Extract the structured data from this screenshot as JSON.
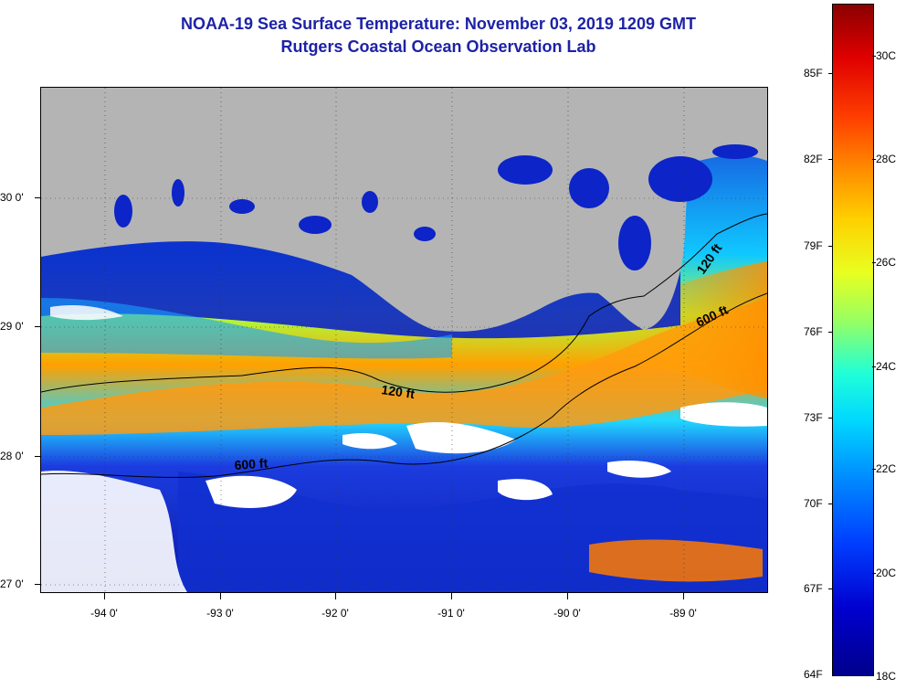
{
  "header": {
    "title": "NOAA-19 Sea Surface Temperature:  November 03, 2019 1209 GMT",
    "subtitle": "Rutgers Coastal Ocean Observation Lab"
  },
  "map": {
    "lon_range": [
      -94.55,
      -88.32
    ],
    "lat_range": [
      26.95,
      30.85
    ],
    "lat_labels": [
      "30 0'",
      "29 0'",
      "28 0'",
      "27 0'"
    ],
    "lon_labels": [
      "-94 0'",
      "-93 0'",
      "-92 0'",
      "-91 0'",
      "-90 0'",
      "-89 0'"
    ],
    "contour_labels": [
      "120 ft",
      "600 ft",
      "120 ft",
      "600 ft"
    ],
    "colors": {
      "land": "#b4b4b4",
      "cloud": "#ffffff",
      "cold": "#1420c0",
      "warm": "#ff9a00"
    }
  },
  "colorbar": {
    "fahrenheit_labels": [
      "85F",
      "82F",
      "79F",
      "76F",
      "73F",
      "70F",
      "67F",
      "64F"
    ],
    "celsius_labels": [
      "30C",
      "28C",
      "26C",
      "24C",
      "22C",
      "20C",
      "18C"
    ],
    "range_c": [
      18,
      31
    ]
  }
}
